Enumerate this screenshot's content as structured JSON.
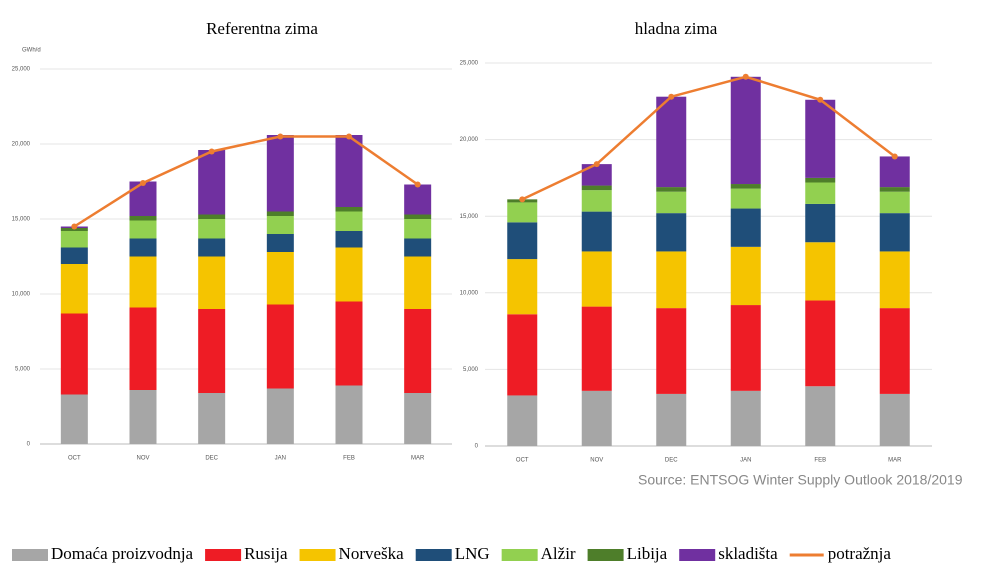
{
  "chart_data": [
    {
      "type": "bar",
      "stacked": true,
      "title": "Referentna zima",
      "ylabel": "GWh/d",
      "categories": [
        "OCT",
        "NOV",
        "DEC",
        "JAN",
        "FEB",
        "MAR"
      ],
      "series": [
        {
          "name": "Domaća proizvodnja",
          "color": "#a6a6a6",
          "values": [
            3300,
            3600,
            3400,
            3700,
            3900,
            3400
          ]
        },
        {
          "name": "Rusija",
          "color": "#ee1c25",
          "values": [
            5400,
            5500,
            5600,
            5600,
            5600,
            5600
          ]
        },
        {
          "name": "Norveška",
          "color": "#f5c400",
          "values": [
            3300,
            3400,
            3500,
            3500,
            3600,
            3500
          ]
        },
        {
          "name": "LNG",
          "color": "#1f4e79",
          "values": [
            1100,
            1200,
            1200,
            1200,
            1100,
            1200
          ]
        },
        {
          "name": "Alžir",
          "color": "#92d050",
          "values": [
            1100,
            1200,
            1300,
            1200,
            1300,
            1300
          ]
        },
        {
          "name": "Libija",
          "color": "#4e7e2a",
          "values": [
            200,
            300,
            300,
            300,
            300,
            300
          ]
        },
        {
          "name": "skladišta",
          "color": "#7030a0",
          "values": [
            100,
            2300,
            4300,
            5100,
            4800,
            2000
          ]
        }
      ],
      "line": {
        "name": "potražnja",
        "color": "#ed7d31",
        "values": [
          14500,
          17400,
          19500,
          20500,
          20500,
          17300
        ]
      },
      "ylim": [
        0,
        25000
      ],
      "yticks": [
        0,
        {
          "value": 5000,
          "label": "5,000"
        },
        {
          "value": 10000,
          "label": "10,000"
        },
        {
          "value": 15000,
          "label": "15,000"
        },
        {
          "value": 20000,
          "label": "20,000"
        },
        {
          "value": 25000,
          "label": "25,000"
        }
      ],
      "grid": true
    },
    {
      "type": "bar",
      "stacked": true,
      "title": "hladna zima",
      "categories": [
        "OCT",
        "NOV",
        "DEC",
        "JAN",
        "FEB",
        "MAR"
      ],
      "series": [
        {
          "color": "#a6a6a6",
          "values": [
            3300,
            3600,
            3400,
            3600,
            3900,
            3400
          ]
        },
        {
          "color": "#ee1c25",
          "values": [
            5300,
            5500,
            5600,
            5600,
            5600,
            5600
          ]
        },
        {
          "color": "#f5c400",
          "values": [
            3600,
            3600,
            3700,
            3800,
            3800,
            3700
          ]
        },
        {
          "color": "#1f4e79",
          "values": [
            2400,
            2600,
            2500,
            2500,
            2500,
            2500
          ]
        },
        {
          "color": "#92d050",
          "values": [
            1300,
            1400,
            1400,
            1300,
            1400,
            1400
          ]
        },
        {
          "color": "#4e7e2a",
          "values": [
            200,
            300,
            300,
            300,
            300,
            300
          ]
        },
        {
          "color": "#7030a0",
          "values": [
            0,
            1400,
            5900,
            7000,
            5100,
            2000
          ]
        }
      ],
      "line": {
        "color": "#ed7d31",
        "values": [
          16100,
          18400,
          22800,
          24100,
          22600,
          18900
        ]
      },
      "ylim": [
        0,
        25000
      ],
      "yticks": [
        0,
        {
          "value": 5000,
          "label": "5,000"
        },
        {
          "value": 10000,
          "label": "10,000"
        },
        {
          "value": 15000,
          "label": "15,000"
        },
        {
          "value": 20000,
          "label": "20,000"
        },
        {
          "value": 25000,
          "label": "25,000"
        }
      ],
      "grid": true,
      "annotation": "Source: ENTSOG Winter Supply Outlook 2018/2019"
    }
  ]
}
